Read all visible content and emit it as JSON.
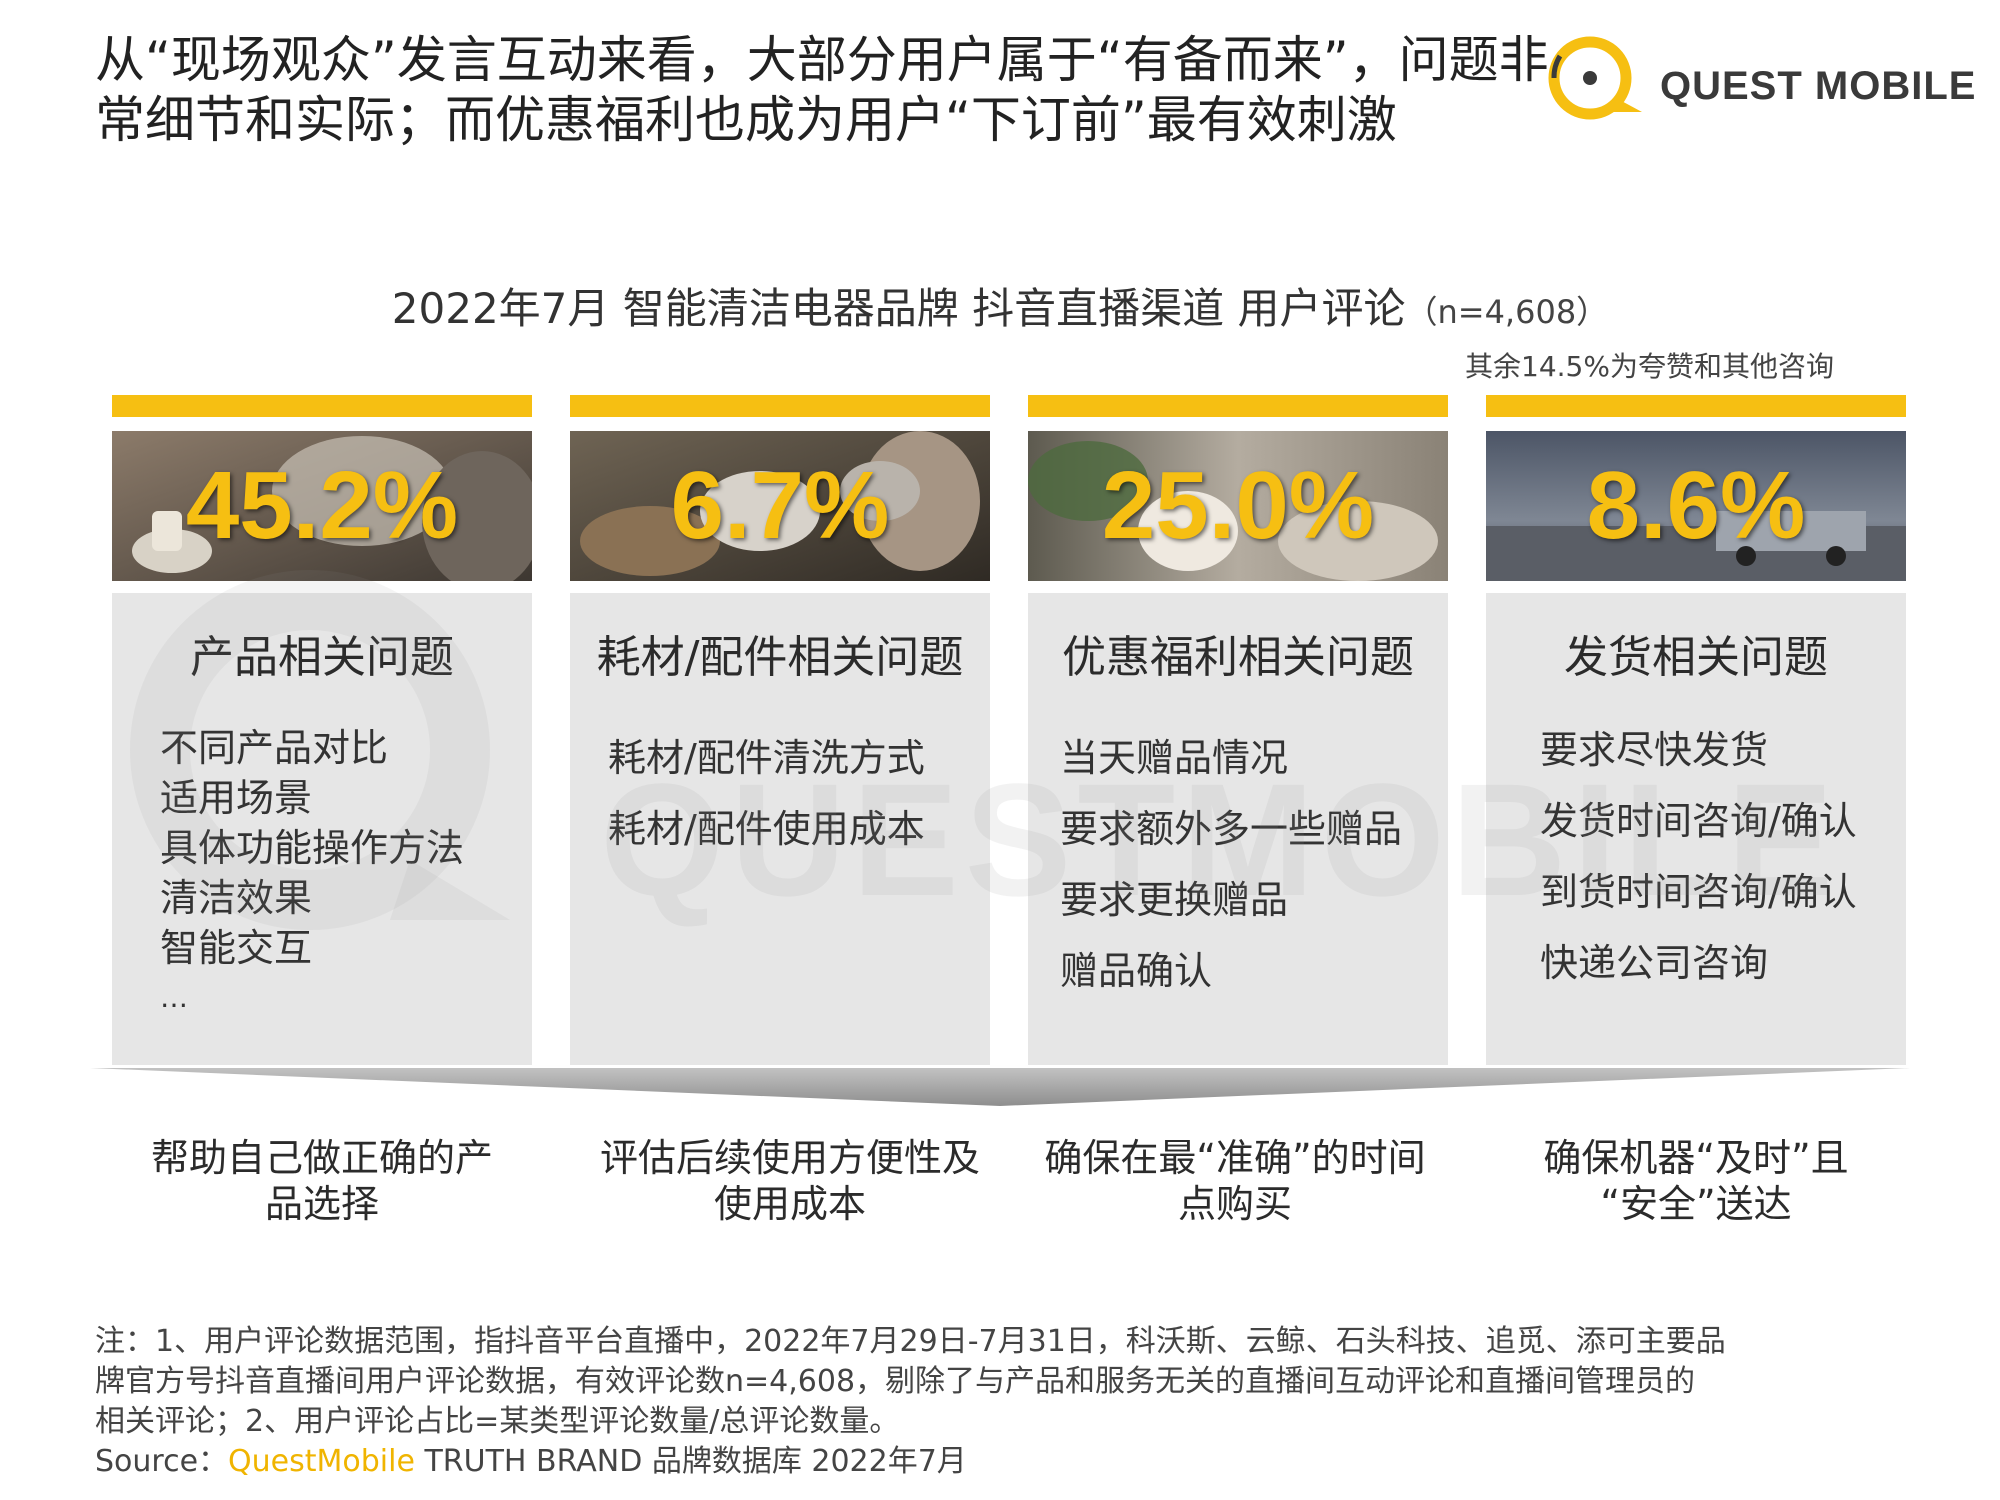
{
  "headline": {
    "line1": "从“现场观众”发言互动来看，大部分用户属于“有备而来”，问题非",
    "line2": "常细节和实际；而优惠福利也成为用户“下订前”最有效刺激"
  },
  "logo": {
    "text": "QUEST MOBILE"
  },
  "watermark": {
    "text": "QUESTMOBILE"
  },
  "chart": {
    "title": "2022年7月 智能清洁电器品牌 抖音直播渠道 用户评论",
    "n_label": "（n=4,608）",
    "note": "其余14.5%为夸赞和其他咨询"
  },
  "chart_data": {
    "type": "table",
    "title": "2022年7月 智能清洁电器品牌 抖音直播渠道 用户评论",
    "n": "4,608",
    "categories": [
      "产品相关问题",
      "耗材/配件相关问题",
      "优惠福利相关问题",
      "发货相关问题"
    ],
    "values": [
      45.2,
      6.7,
      25.0,
      8.6
    ],
    "unit": "%",
    "remainder_note": "其余14.5%为夸赞和其他咨询"
  },
  "cards": [
    {
      "pct": "45.2%",
      "heading": "产品相关问题",
      "items": [
        "不同产品对比",
        "适用场景",
        "具体功能操作方法",
        "清洁效果",
        "智能交互",
        "…"
      ]
    },
    {
      "pct": "6.7%",
      "heading": "耗材/配件相关问题",
      "items": [
        "耗材/配件清洗方式",
        "耗材/配件使用成本"
      ]
    },
    {
      "pct": "25.0%",
      "heading": "优惠福利相关问题",
      "items": [
        "当天赠品情况",
        "要求额外多一些赠品",
        "要求更换赠品",
        "赠品确认"
      ]
    },
    {
      "pct": "8.6%",
      "heading": "发货相关问题",
      "items": [
        "要求尽快发货",
        "发货时间咨询/确认",
        "到货时间咨询/确认",
        "快递公司咨询"
      ]
    }
  ],
  "outcomes": [
    {
      "line1": "帮助自己做正确的产",
      "line2": "品选择"
    },
    {
      "line1": "评估后续使用方便性及",
      "line2": "使用成本"
    },
    {
      "line1": "确保在最“准确”的时间",
      "line2": "点购买"
    },
    {
      "line1": "确保机器“及时”且",
      "line2": "“安全”送达"
    }
  ],
  "footnote": {
    "line1": "注：1、用户评论数据范围，指抖音平台直播中，2022年7月29日-7月31日，科沃斯、云鲸、石头科技、追觅、添可主要品",
    "line2": "牌官方号抖音直播间用户评论数据，有效评论数n=4,608，剔除了与产品和服务无关的直播间互动评论和直播间管理员的",
    "line3": "相关评论；2、用户评论占比=某类型评论数量/总评论数量。",
    "source_prefix": "Source：",
    "source_brand": "QuestMobile",
    "source_rest": " TRUTH BRAND 品牌数据库 2022年7月"
  },
  "colors": {
    "accent": "#f6bf12",
    "card_bg": "#e6e6e6",
    "text": "#2b2b2b"
  }
}
